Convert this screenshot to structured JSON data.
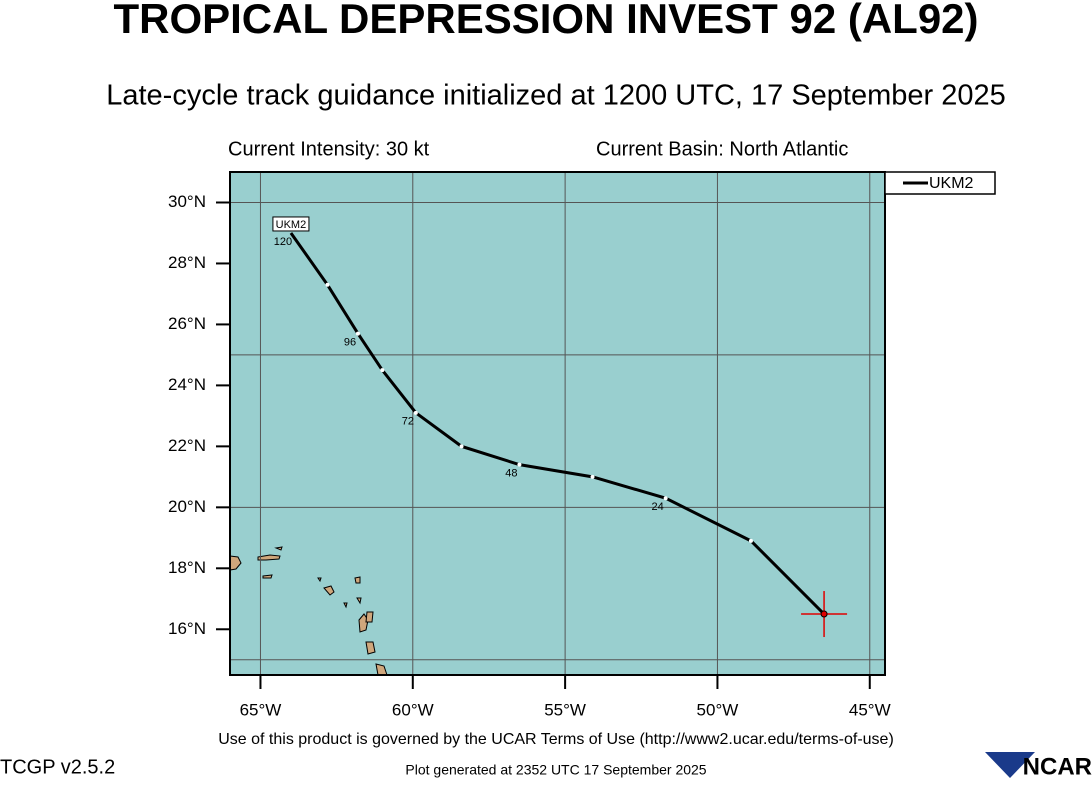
{
  "chart_data": {
    "type": "track",
    "title": "TROPICAL DEPRESSION INVEST 92 (AL92)",
    "subtitle": "Late-cycle track guidance initialized at 1200 UTC, 17 September 2025",
    "intensity_label": "Current Intensity: 30 kt",
    "basin_label": "Current Basin: North Atlantic",
    "terms": "Use of this product is governed by the UCAR Terms of Use (http://www2.ucar.edu/terms-of-use)",
    "version": "TCGP v2.5.2",
    "generated": "Plot generated at 2352 UTC   17 September 2025",
    "logo": "NCAR",
    "xlim": [
      -66,
      -44.5
    ],
    "ylim": [
      14.5,
      31
    ],
    "xticks": [
      {
        "value": -65,
        "label": "65°W"
      },
      {
        "value": -60,
        "label": "60°W"
      },
      {
        "value": -55,
        "label": "55°W"
      },
      {
        "value": -50,
        "label": "50°W"
      },
      {
        "value": -45,
        "label": "45°W"
      }
    ],
    "yticks": [
      {
        "value": 16,
        "label": "16°N"
      },
      {
        "value": 18,
        "label": "18°N"
      },
      {
        "value": 20,
        "label": "20°N"
      },
      {
        "value": 22,
        "label": "22°N"
      },
      {
        "value": 24,
        "label": "24°N"
      },
      {
        "value": 26,
        "label": "26°N"
      },
      {
        "value": 28,
        "label": "28°N"
      },
      {
        "value": 30,
        "label": "30°N"
      }
    ],
    "ygrid": [
      15,
      20,
      25,
      30
    ],
    "grid": true,
    "legend": "top-right",
    "series": [
      {
        "name": "UKM2",
        "color": "#000000",
        "x": [
          -46.5,
          -48.9,
          -51.7,
          -54.1,
          -56.5,
          -58.4,
          -59.9,
          -61.0,
          -61.8,
          -62.8,
          -64.0
        ],
        "values": [
          16.5,
          18.9,
          20.3,
          21.0,
          21.4,
          22.0,
          23.1,
          24.5,
          25.7,
          27.3,
          29.0
        ],
        "hour_labels": [
          null,
          null,
          24,
          null,
          48,
          null,
          72,
          null,
          96,
          null,
          120
        ]
      }
    ],
    "start_marker_color": "#e00000"
  }
}
